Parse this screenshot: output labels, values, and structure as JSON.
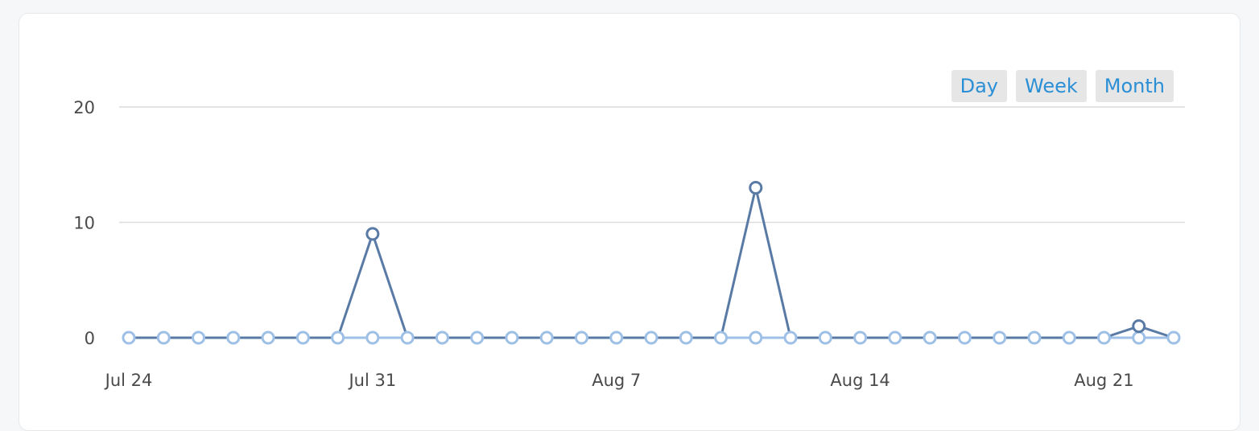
{
  "controls": {
    "range_buttons": [
      {
        "label": "Day"
      },
      {
        "label": "Week"
      },
      {
        "label": "Month"
      }
    ]
  },
  "colors": {
    "line_dark": "#5a7aa6",
    "line_light": "#9ec0e6",
    "gridline": "#dcdcdc",
    "button_text": "#2b8fd6",
    "button_bg": "#e6e6e6"
  },
  "chart_data": {
    "type": "line",
    "title": "",
    "xlabel": "",
    "ylabel": "",
    "ylim": [
      0,
      20
    ],
    "yticks": [
      0,
      10,
      20
    ],
    "grid": true,
    "x_dates": [
      "2023-07-24",
      "2023-07-25",
      "2023-07-26",
      "2023-07-27",
      "2023-07-28",
      "2023-07-29",
      "2023-07-30",
      "2023-07-31",
      "2023-08-01",
      "2023-08-02",
      "2023-08-03",
      "2023-08-04",
      "2023-08-05",
      "2023-08-06",
      "2023-08-07",
      "2023-08-08",
      "2023-08-09",
      "2023-08-10",
      "2023-08-11",
      "2023-08-12",
      "2023-08-13",
      "2023-08-14",
      "2023-08-15",
      "2023-08-16",
      "2023-08-17",
      "2023-08-18",
      "2023-08-19",
      "2023-08-20",
      "2023-08-21",
      "2023-08-22",
      "2023-08-23"
    ],
    "xtick_labels": [
      {
        "date": "2023-07-24",
        "label": "Jul 24"
      },
      {
        "date": "2023-07-31",
        "label": "Jul 31"
      },
      {
        "date": "2023-08-07",
        "label": "Aug 7"
      },
      {
        "date": "2023-08-14",
        "label": "Aug 14"
      },
      {
        "date": "2023-08-21",
        "label": "Aug 21"
      }
    ],
    "series": [
      {
        "color": "#5a7aa6",
        "values": [
          0,
          0,
          0,
          0,
          0,
          0,
          0,
          9,
          0,
          0,
          0,
          0,
          0,
          0,
          0,
          0,
          0,
          0,
          13,
          0,
          0,
          0,
          0,
          0,
          0,
          0,
          0,
          0,
          0,
          1,
          0
        ]
      },
      {
        "color": "#9ec0e6",
        "values": [
          0,
          0,
          0,
          0,
          0,
          0,
          0,
          0,
          0,
          0,
          0,
          0,
          0,
          0,
          0,
          0,
          0,
          0,
          0,
          0,
          0,
          0,
          0,
          0,
          0,
          0,
          0,
          0,
          0,
          0,
          0
        ]
      }
    ]
  }
}
